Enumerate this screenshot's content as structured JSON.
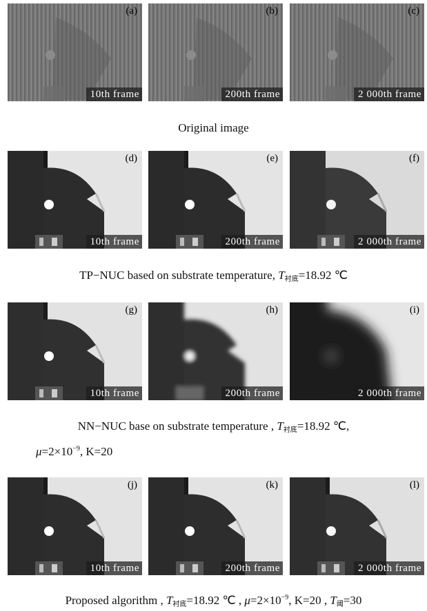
{
  "figure": {
    "rows": [
      {
        "panels": [
          {
            "letter": "(a)",
            "frame": "10th  frame"
          },
          {
            "letter": "(b)",
            "frame": "200th  frame"
          },
          {
            "letter": "(c)",
            "frame": "2 000th frame"
          }
        ]
      },
      {
        "panels": [
          {
            "letter": "(d)",
            "frame": "10th  frame"
          },
          {
            "letter": "(e)",
            "frame": "200th  frame"
          },
          {
            "letter": "(f)",
            "frame": "2 000th frame"
          }
        ]
      },
      {
        "panels": [
          {
            "letter": "(g)",
            "frame": "10th  frame"
          },
          {
            "letter": "(h)",
            "frame": "200th  frame"
          },
          {
            "letter": "(i)",
            "frame": "2 000th frame"
          }
        ]
      },
      {
        "panels": [
          {
            "letter": "(j)",
            "frame": "10th  frame"
          },
          {
            "letter": "(k)",
            "frame": "200th  frame"
          },
          {
            "letter": "(l)",
            "frame": "2 000th frame"
          }
        ]
      }
    ],
    "captions": {
      "row1": "Original  image",
      "row2_prefix": "TP−NUC  based  on  substrate  temperature,",
      "row2_T": "T",
      "row2_sub": "衬底",
      "row2_value": "=18.92 ℃",
      "row3_prefix": "NN−NUC  base  on  substrate  temperature ,",
      "row3_T": "T",
      "row3_sub": "衬底",
      "row3_value": "=18.92 ℃,",
      "row3_line2_mu": "μ",
      "row3_line2_eq": "=2×10",
      "row3_line2_exp": "−9",
      "row3_line2_K": ", K=20",
      "row4_prefix": "Proposed  algorithm ,",
      "row4_T": "T",
      "row4_sub": "衬底",
      "row4_value": "=18.92 ℃ ,",
      "row4_mu": "μ",
      "row4_eq": "=2×10",
      "row4_exp": "−9",
      "row4_K": ", K=20 ,",
      "row4_T2": "T",
      "row4_sub2": "阈",
      "row4_value2": "=30"
    }
  }
}
